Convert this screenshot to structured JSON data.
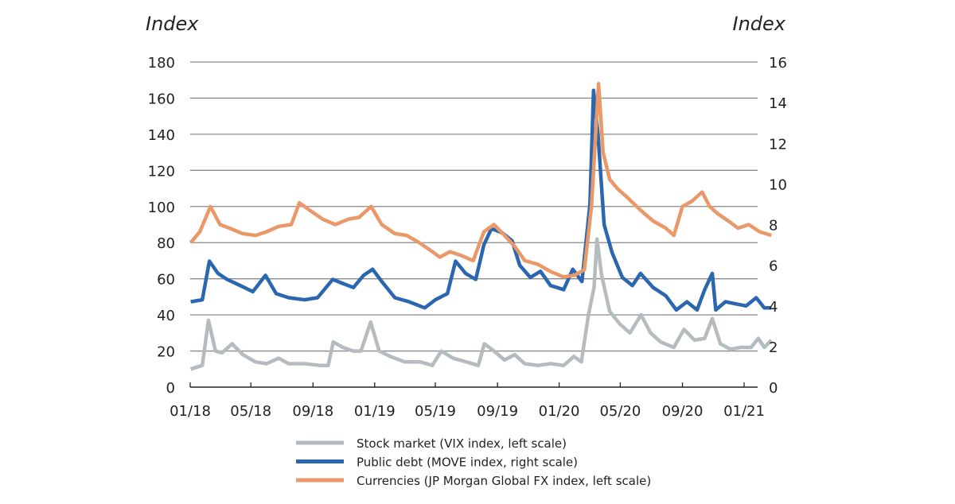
{
  "chart_data": {
    "type": "line",
    "left_axis": {
      "label": "Index",
      "range": [
        0,
        180
      ],
      "ticks": [
        0,
        20,
        40,
        60,
        80,
        100,
        120,
        140,
        160,
        180
      ]
    },
    "right_axis": {
      "label": "Index",
      "range": [
        0,
        16
      ],
      "ticks": [
        0,
        2,
        4,
        6,
        8,
        10,
        12,
        14,
        16
      ]
    },
    "x_ticks": [
      "01/18",
      "05/18",
      "09/18",
      "01/19",
      "05/19",
      "09/19",
      "01/20",
      "05/20",
      "09/20",
      "01/21"
    ],
    "x_tick_dates": [
      "2018-01-01",
      "2018-05-01",
      "2018-09-01",
      "2019-01-01",
      "2019-05-01",
      "2019-09-01",
      "2020-01-01",
      "2020-05-01",
      "2020-09-01",
      "2021-01-01"
    ],
    "x_range": [
      "2018-01-01",
      "2021-02-25"
    ],
    "grid": "horizontal",
    "legend_position": "bottom",
    "series": [
      {
        "name": "Stock market (VIX index, left scale)",
        "axis": "left",
        "color": "#b4bcc0",
        "points": [
          [
            "2018-01-02",
            10
          ],
          [
            "2018-01-25",
            12
          ],
          [
            "2018-02-06",
            37
          ],
          [
            "2018-02-20",
            20
          ],
          [
            "2018-03-05",
            19
          ],
          [
            "2018-03-25",
            24
          ],
          [
            "2018-04-15",
            18
          ],
          [
            "2018-05-10",
            14
          ],
          [
            "2018-06-01",
            13
          ],
          [
            "2018-06-25",
            16
          ],
          [
            "2018-07-15",
            13
          ],
          [
            "2018-08-15",
            13
          ],
          [
            "2018-09-15",
            12
          ],
          [
            "2018-10-01",
            12
          ],
          [
            "2018-10-11",
            25
          ],
          [
            "2018-10-30",
            22
          ],
          [
            "2018-11-20",
            20
          ],
          [
            "2018-12-05",
            20
          ],
          [
            "2018-12-24",
            36
          ],
          [
            "2019-01-10",
            20
          ],
          [
            "2019-02-01",
            17
          ],
          [
            "2019-03-01",
            14
          ],
          [
            "2019-04-01",
            14
          ],
          [
            "2019-04-25",
            12
          ],
          [
            "2019-05-13",
            20
          ],
          [
            "2019-06-05",
            16
          ],
          [
            "2019-07-01",
            14
          ],
          [
            "2019-07-25",
            12
          ],
          [
            "2019-08-06",
            24
          ],
          [
            "2019-08-25",
            20
          ],
          [
            "2019-09-15",
            15
          ],
          [
            "2019-10-05",
            18
          ],
          [
            "2019-10-25",
            13
          ],
          [
            "2019-11-20",
            12
          ],
          [
            "2019-12-15",
            13
          ],
          [
            "2020-01-10",
            12
          ],
          [
            "2020-01-30",
            17
          ],
          [
            "2020-02-14",
            14
          ],
          [
            "2020-02-28",
            40
          ],
          [
            "2020-03-10",
            55
          ],
          [
            "2020-03-16",
            82
          ],
          [
            "2020-03-25",
            62
          ],
          [
            "2020-04-10",
            42
          ],
          [
            "2020-04-30",
            35
          ],
          [
            "2020-05-20",
            30
          ],
          [
            "2020-06-11",
            40
          ],
          [
            "2020-06-30",
            30
          ],
          [
            "2020-07-20",
            25
          ],
          [
            "2020-08-15",
            22
          ],
          [
            "2020-09-04",
            32
          ],
          [
            "2020-09-25",
            26
          ],
          [
            "2020-10-15",
            27
          ],
          [
            "2020-10-30",
            38
          ],
          [
            "2020-11-15",
            24
          ],
          [
            "2020-12-05",
            21
          ],
          [
            "2020-12-25",
            22
          ],
          [
            "2021-01-15",
            22
          ],
          [
            "2021-01-29",
            27
          ],
          [
            "2021-02-10",
            22
          ],
          [
            "2021-02-24",
            26
          ]
        ]
      },
      {
        "name": "Public debt (MOVE index, right scale)",
        "axis": "right",
        "color": "#2a67b0",
        "points": [
          [
            "2018-01-02",
            4.2
          ],
          [
            "2018-01-25",
            4.3
          ],
          [
            "2018-02-08",
            6.2
          ],
          [
            "2018-02-25",
            5.6
          ],
          [
            "2018-03-15",
            5.3
          ],
          [
            "2018-04-10",
            5.0
          ],
          [
            "2018-05-05",
            4.7
          ],
          [
            "2018-05-30",
            5.5
          ],
          [
            "2018-06-20",
            4.6
          ],
          [
            "2018-07-15",
            4.4
          ],
          [
            "2018-08-15",
            4.3
          ],
          [
            "2018-09-10",
            4.4
          ],
          [
            "2018-10-10",
            5.3
          ],
          [
            "2018-10-30",
            5.1
          ],
          [
            "2018-11-20",
            4.9
          ],
          [
            "2018-12-10",
            5.5
          ],
          [
            "2018-12-28",
            5.8
          ],
          [
            "2019-01-15",
            5.2
          ],
          [
            "2019-02-10",
            4.4
          ],
          [
            "2019-03-10",
            4.2
          ],
          [
            "2019-04-10",
            3.9
          ],
          [
            "2019-05-01",
            4.3
          ],
          [
            "2019-05-25",
            4.6
          ],
          [
            "2019-06-10",
            6.2
          ],
          [
            "2019-06-30",
            5.6
          ],
          [
            "2019-07-20",
            5.3
          ],
          [
            "2019-08-05",
            7.0
          ],
          [
            "2019-08-20",
            7.8
          ],
          [
            "2019-09-10",
            7.6
          ],
          [
            "2019-09-30",
            7.2
          ],
          [
            "2019-10-15",
            6.0
          ],
          [
            "2019-11-05",
            5.4
          ],
          [
            "2019-11-25",
            5.7
          ],
          [
            "2019-12-15",
            5.0
          ],
          [
            "2020-01-10",
            4.8
          ],
          [
            "2020-01-28",
            5.8
          ],
          [
            "2020-02-15",
            5.2
          ],
          [
            "2020-03-02",
            9.0
          ],
          [
            "2020-03-09",
            14.6
          ],
          [
            "2020-03-18",
            12.4
          ],
          [
            "2020-03-30",
            8.0
          ],
          [
            "2020-04-15",
            6.6
          ],
          [
            "2020-05-05",
            5.4
          ],
          [
            "2020-05-25",
            5.0
          ],
          [
            "2020-06-10",
            5.6
          ],
          [
            "2020-07-05",
            4.9
          ],
          [
            "2020-07-30",
            4.5
          ],
          [
            "2020-08-20",
            3.8
          ],
          [
            "2020-09-10",
            4.2
          ],
          [
            "2020-09-30",
            3.8
          ],
          [
            "2020-10-15",
            4.8
          ],
          [
            "2020-10-30",
            5.6
          ],
          [
            "2020-11-06",
            3.8
          ],
          [
            "2020-11-25",
            4.2
          ],
          [
            "2020-12-15",
            4.1
          ],
          [
            "2021-01-05",
            4.0
          ],
          [
            "2021-01-25",
            4.4
          ],
          [
            "2021-02-10",
            3.9
          ],
          [
            "2021-02-24",
            3.9
          ]
        ]
      },
      {
        "name": "Currencies (JP Morgan Global FX index, left scale)",
        "axis": "left",
        "color": "#eb9868",
        "points": [
          [
            "2018-01-02",
            80
          ],
          [
            "2018-01-20",
            86
          ],
          [
            "2018-02-10",
            100
          ],
          [
            "2018-03-01",
            90
          ],
          [
            "2018-03-20",
            88
          ],
          [
            "2018-04-15",
            85
          ],
          [
            "2018-05-10",
            84
          ],
          [
            "2018-06-01",
            86
          ],
          [
            "2018-06-25",
            89
          ],
          [
            "2018-07-20",
            90
          ],
          [
            "2018-08-05",
            102
          ],
          [
            "2018-08-25",
            98
          ],
          [
            "2018-09-20",
            93
          ],
          [
            "2018-10-15",
            90
          ],
          [
            "2018-11-10",
            93
          ],
          [
            "2018-12-01",
            94
          ],
          [
            "2018-12-25",
            100
          ],
          [
            "2019-01-15",
            90
          ],
          [
            "2019-02-10",
            85
          ],
          [
            "2019-03-05",
            84
          ],
          [
            "2019-03-30",
            80
          ],
          [
            "2019-04-20",
            76
          ],
          [
            "2019-05-10",
            72
          ],
          [
            "2019-05-30",
            75
          ],
          [
            "2019-06-20",
            73
          ],
          [
            "2019-07-15",
            70
          ],
          [
            "2019-08-05",
            86
          ],
          [
            "2019-08-25",
            90
          ],
          [
            "2019-09-15",
            84
          ],
          [
            "2019-10-05",
            78
          ],
          [
            "2019-10-25",
            70
          ],
          [
            "2019-11-20",
            68
          ],
          [
            "2019-12-15",
            64
          ],
          [
            "2020-01-10",
            61
          ],
          [
            "2020-02-01",
            62
          ],
          [
            "2020-02-20",
            65
          ],
          [
            "2020-03-05",
            100
          ],
          [
            "2020-03-19",
            168
          ],
          [
            "2020-03-28",
            130
          ],
          [
            "2020-04-10",
            115
          ],
          [
            "2020-04-25",
            110
          ],
          [
            "2020-05-15",
            105
          ],
          [
            "2020-06-10",
            98
          ],
          [
            "2020-07-05",
            92
          ],
          [
            "2020-07-30",
            88
          ],
          [
            "2020-08-15",
            84
          ],
          [
            "2020-09-01",
            100
          ],
          [
            "2020-09-20",
            103
          ],
          [
            "2020-10-10",
            108
          ],
          [
            "2020-10-25",
            100
          ],
          [
            "2020-11-10",
            96
          ],
          [
            "2020-12-01",
            92
          ],
          [
            "2020-12-20",
            88
          ],
          [
            "2021-01-10",
            90
          ],
          [
            "2021-02-01",
            86
          ],
          [
            "2021-02-24",
            84
          ]
        ]
      }
    ]
  }
}
